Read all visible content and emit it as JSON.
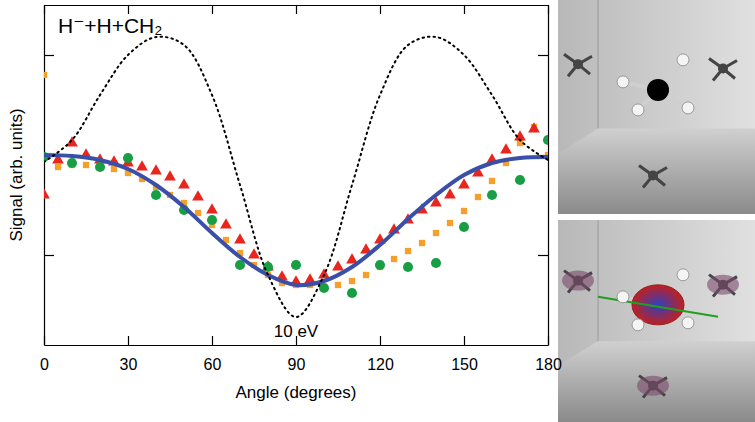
{
  "chart_data": {
    "type": "line",
    "title": "H⁻+H+CH₂",
    "x_label": "Angle (degrees)",
    "y_label": "Signal (arb. units)",
    "annotations": [
      {
        "text": "10 eV",
        "x": 90,
        "y": -0.78
      }
    ],
    "xlim": [
      0,
      180
    ],
    "xticks": [
      0,
      30,
      60,
      90,
      120,
      150,
      180
    ],
    "ylim": [
      -0.9,
      2.5
    ],
    "yticks": [
      0,
      1,
      2
    ],
    "tick_labels": "x",
    "grid": false,
    "series": [
      {
        "type": "scatter",
        "marker": "square",
        "color": "#f6a02c",
        "x": [
          0,
          5,
          10,
          15,
          20,
          25,
          30,
          35,
          40,
          45,
          50,
          55,
          60,
          65,
          70,
          75,
          80,
          85,
          90,
          95,
          100,
          105,
          110,
          115,
          120,
          125,
          130,
          135,
          140,
          145,
          150,
          155,
          160,
          165,
          170,
          175,
          180
        ],
        "values": [
          1.8,
          0.88,
          0.9,
          0.9,
          0.9,
          0.86,
          0.82,
          0.76,
          0.68,
          0.6,
          0.52,
          0.42,
          0.3,
          0.15,
          0.02,
          -0.1,
          -0.2,
          -0.28,
          -0.3,
          -0.3,
          -0.32,
          -0.3,
          -0.26,
          -0.2,
          -0.12,
          -0.04,
          0.04,
          0.12,
          0.22,
          0.32,
          0.44,
          0.58,
          0.74,
          0.92,
          1.12,
          1.28,
          1.0
        ]
      },
      {
        "type": "scatter",
        "marker": "triangle",
        "color": "#e8261e",
        "x": [
          0,
          5,
          10,
          15,
          20,
          25,
          30,
          35,
          40,
          45,
          50,
          55,
          60,
          65,
          70,
          75,
          80,
          85,
          90,
          95,
          100,
          105,
          110,
          115,
          120,
          125,
          130,
          135,
          140,
          145,
          150,
          155,
          160,
          165,
          170,
          175
        ],
        "values": [
          0.6,
          0.95,
          1.12,
          1.0,
          0.95,
          0.93,
          0.92,
          0.88,
          0.84,
          0.78,
          0.7,
          0.58,
          0.45,
          0.3,
          0.15,
          0,
          -0.12,
          -0.22,
          -0.27,
          -0.25,
          -0.2,
          -0.12,
          -0.05,
          0.05,
          0.15,
          0.25,
          0.35,
          0.45,
          0.52,
          0.6,
          0.7,
          0.82,
          0.95,
          1.05,
          1.18,
          1.26
        ]
      },
      {
        "type": "scatter",
        "marker": "circle",
        "color": "#1a9e45",
        "x": [
          0,
          10,
          20,
          30,
          40,
          50,
          60,
          70,
          80,
          90,
          100,
          110,
          120,
          130,
          140,
          150,
          160,
          170,
          180
        ],
        "values": [
          0.98,
          0.92,
          0.88,
          0.97,
          0.6,
          0.45,
          0.35,
          -0.1,
          -0.12,
          -0.1,
          -0.33,
          -0.38,
          -0.1,
          -0.12,
          -0.08,
          0.28,
          0.6,
          0.75,
          1.15
        ]
      },
      {
        "type": "line",
        "line_style": "solid",
        "color": "#3a50a8",
        "x": [
          0,
          10,
          20,
          30,
          40,
          50,
          60,
          70,
          80,
          90,
          100,
          110,
          120,
          130,
          140,
          150,
          160,
          170,
          180
        ],
        "values": [
          1.0,
          0.99,
          0.95,
          0.86,
          0.7,
          0.48,
          0.22,
          -0.02,
          -0.2,
          -0.3,
          -0.26,
          -0.12,
          0.1,
          0.36,
          0.6,
          0.8,
          0.92,
          0.97,
          0.98
        ]
      },
      {
        "type": "line",
        "line_style": "dotted",
        "color": "#000000",
        "x": [
          0,
          10,
          20,
          30,
          40,
          50,
          60,
          70,
          80,
          90,
          100,
          110,
          120,
          130,
          140,
          150,
          160,
          170,
          180
        ],
        "values": [
          0.93,
          1.15,
          1.6,
          2.0,
          2.18,
          2.1,
          1.6,
          0.7,
          -0.2,
          -0.62,
          -0.2,
          0.7,
          1.6,
          2.1,
          2.18,
          2.0,
          1.6,
          1.15,
          0.95
        ]
      }
    ]
  }
}
